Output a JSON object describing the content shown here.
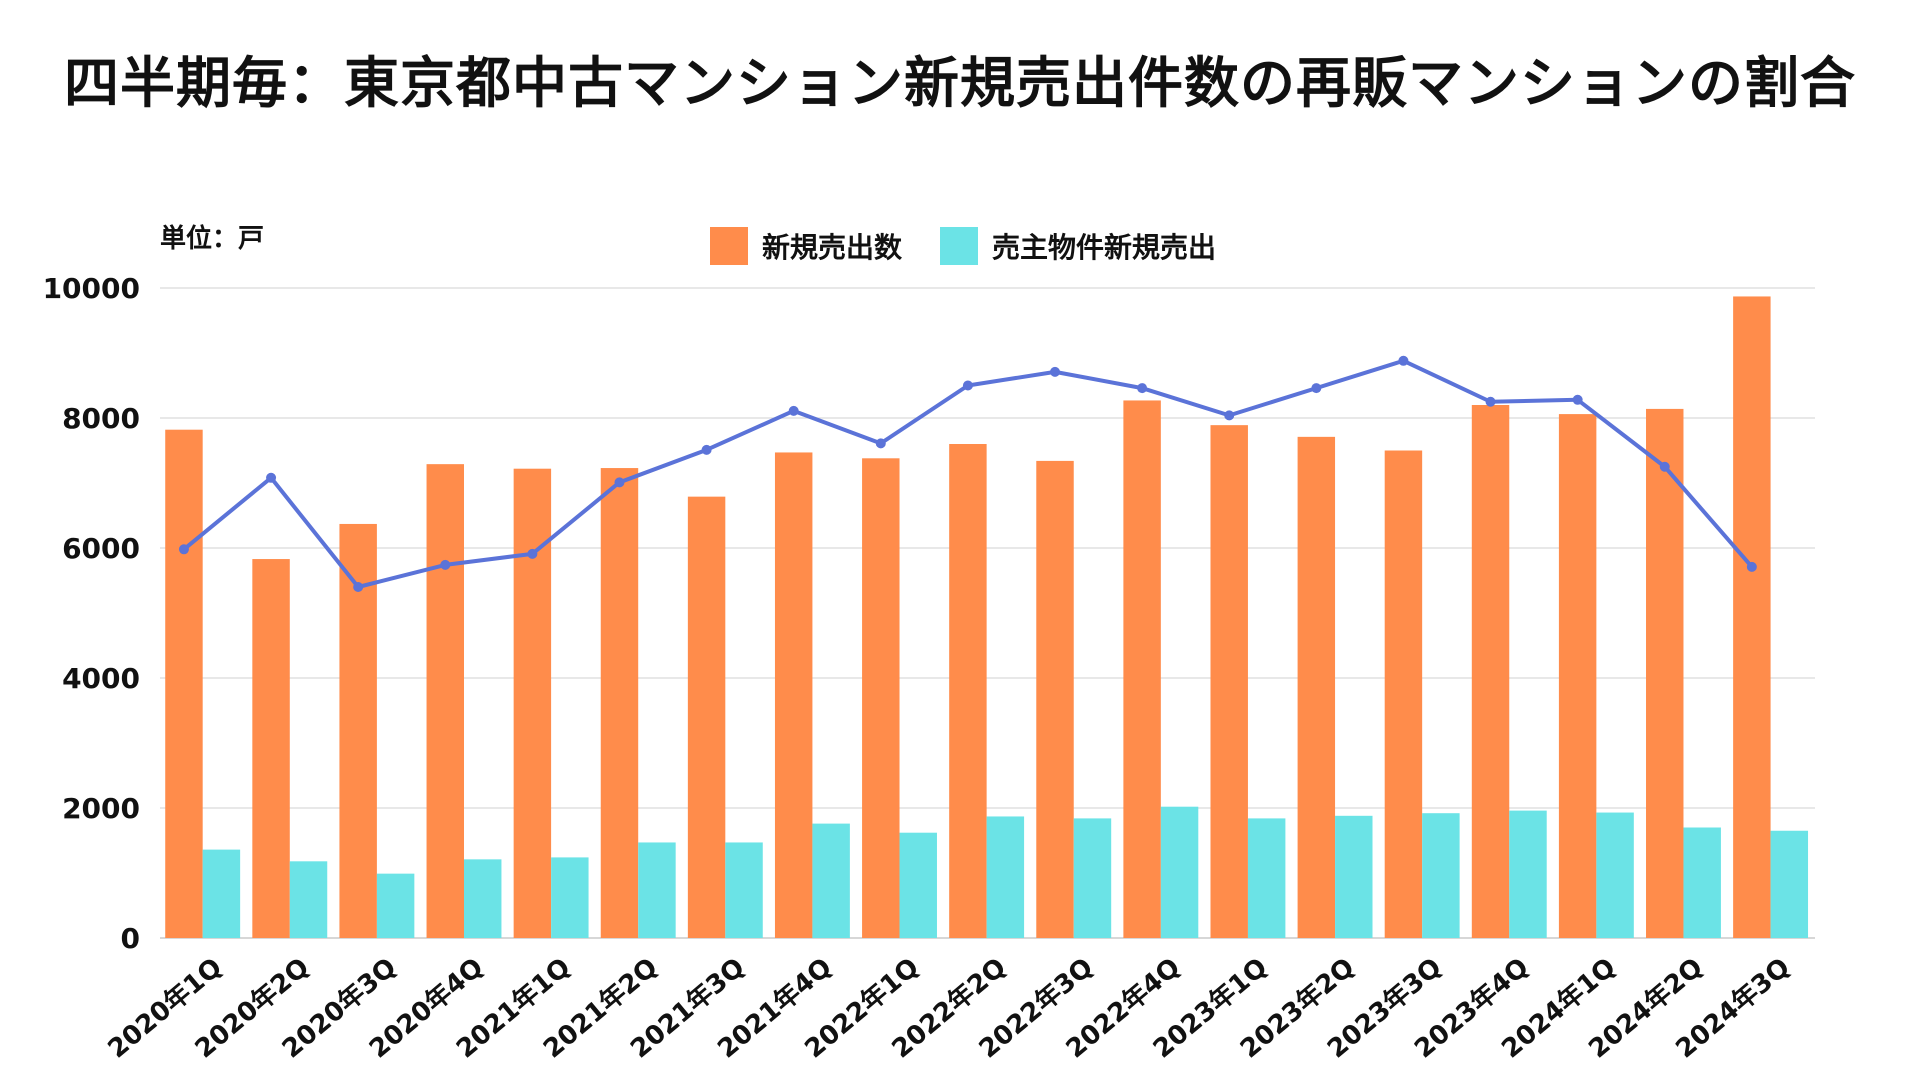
{
  "chart_data": {
    "type": "bar",
    "title": "四半期毎：東京都中古マンション新規売出件数の再販マンションの割合",
    "unit_label": "単位：戸",
    "xlabel": "",
    "ylabel": "",
    "ylim": [
      0,
      10000
    ],
    "yticks": [
      "0",
      "2000",
      "4000",
      "6000",
      "8000",
      "10000"
    ],
    "grid": true,
    "legend_position": "top-center",
    "categories": [
      "2020年1Q",
      "2020年2Q",
      "2020年3Q",
      "2020年4Q",
      "2021年1Q",
      "2021年2Q",
      "2021年3Q",
      "2021年4Q",
      "2022年1Q",
      "2022年2Q",
      "2022年3Q",
      "2022年4Q",
      "2023年1Q",
      "2023年2Q",
      "2023年3Q",
      "2023年4Q",
      "2024年1Q",
      "2024年2Q",
      "2024年3Q"
    ],
    "series": [
      {
        "name": "新規売出数",
        "type": "bar",
        "color": "#FF8C4B",
        "values": [
          7820,
          5830,
          6370,
          7290,
          7220,
          7230,
          6790,
          7470,
          7380,
          7600,
          7340,
          8270,
          7890,
          7710,
          7500,
          8200,
          8060,
          8140,
          9870
        ]
      },
      {
        "name": "売主物件新規売出",
        "type": "bar",
        "color": "#6BE3E6",
        "values": [
          1360,
          1180,
          990,
          1210,
          1240,
          1470,
          1470,
          1760,
          1620,
          1870,
          1840,
          2020,
          1840,
          1880,
          1920,
          1960,
          1930,
          1700,
          1650
        ]
      },
      {
        "name": "",
        "type": "line",
        "color": "#5B73D8",
        "values": [
          5980,
          7080,
          5400,
          5740,
          5910,
          7010,
          7510,
          8110,
          7610,
          8500,
          8710,
          8460,
          8040,
          8460,
          8880,
          8250,
          8280,
          7250,
          5710
        ]
      }
    ]
  }
}
